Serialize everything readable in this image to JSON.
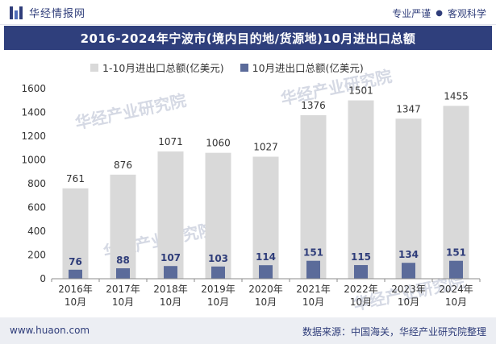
{
  "header": {
    "brand": "华经情报网",
    "tag_left": "专业严谨",
    "tag_right": "客观科学"
  },
  "title": "2016-2024年宁波市(境内目的地/货源地)10月进出口总额",
  "footer": {
    "website": "www.huaon.com",
    "source": "数据来源：中国海关，华经产业研究院整理"
  },
  "colors": {
    "header_blue": "#2f3f7c",
    "series1": "#d9d9d9",
    "series2": "#5b6b9a"
  },
  "chart_data": {
    "type": "bar",
    "categories": [
      "2016年\n10月",
      "2017年\n10月",
      "2018年\n10月",
      "2019年\n10月",
      "2020年\n10月",
      "2021年\n10月",
      "2022年\n10月",
      "2023年\n10月",
      "2024年\n10月"
    ],
    "series": [
      {
        "name": "1-10月进出口总额(亿美元)",
        "values": [
          761,
          876,
          1071,
          1060,
          1027,
          1376,
          1501,
          1347,
          1455
        ]
      },
      {
        "name": "10月进出口总额(亿美元)",
        "values": [
          76,
          88,
          107,
          103,
          114,
          151,
          115,
          134,
          151
        ]
      }
    ],
    "ylim": [
      0,
      1600
    ],
    "yticks": [
      0,
      200,
      400,
      600,
      800,
      1000,
      1200,
      1400,
      1600
    ],
    "grid": false,
    "legend": "top-left"
  },
  "watermark": "华经产业研究院"
}
